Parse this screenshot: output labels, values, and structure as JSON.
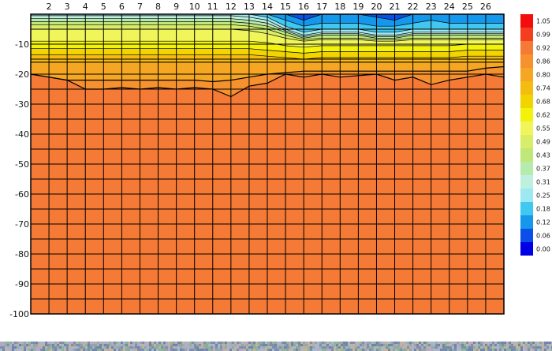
{
  "chart_data": {
    "type": "heatmap",
    "title": "",
    "xlabel": "",
    "ylabel": "",
    "x_ticks": [
      "2",
      "3",
      "4",
      "5",
      "6",
      "7",
      "8",
      "9",
      "10",
      "11",
      "12",
      "13",
      "14",
      "15",
      "16",
      "17",
      "18",
      "19",
      "20",
      "21",
      "22",
      "23",
      "24",
      "25",
      "26"
    ],
    "xlim": [
      1,
      27
    ],
    "y_ticks": [
      "-10",
      "-20",
      "-30",
      "-40",
      "-50",
      "-60",
      "-70",
      "-80",
      "-90",
      "-100"
    ],
    "ylim": [
      -100,
      0
    ],
    "grid": true,
    "colorbar": {
      "placement": "right",
      "ticks": [
        "1.05",
        "0.99",
        "0.92",
        "0.86",
        "0.80",
        "0.74",
        "0.68",
        "0.62",
        "0.55",
        "0.49",
        "0.43",
        "0.37",
        "0.31",
        "0.25",
        "0.18",
        "0.12",
        "0.06",
        "0.00"
      ],
      "colors": [
        "#f50d0d",
        "#f53d1f",
        "#f57a35",
        "#f5922e",
        "#f5a623",
        "#f5bc10",
        "#f2d400",
        "#f2f20a",
        "#f0f55a",
        "#d8ee66",
        "#bfe77a",
        "#b6ecab",
        "#bff0df",
        "#9de8f2",
        "#40c8f0",
        "#1597ec",
        "#0a50e8",
        "#0000e6"
      ]
    },
    "description_levels": {
      "x": [
        1,
        2,
        3,
        4,
        5,
        6,
        7,
        8,
        9,
        10,
        11,
        12,
        13,
        14,
        15,
        16,
        17,
        18,
        19,
        20,
        21,
        22,
        23,
        24,
        25,
        26,
        27
      ],
      "contours": [
        {
          "value": 0.06,
          "color": "#0a50e8",
          "depth": [
            0,
            0,
            0,
            0,
            0,
            0,
            0,
            0,
            0,
            0,
            0,
            0,
            0,
            0,
            0,
            2,
            0,
            0,
            0,
            1,
            2,
            0,
            0,
            0,
            0,
            0,
            0
          ]
        },
        {
          "value": 0.12,
          "color": "#1597ec",
          "depth": [
            0,
            0,
            0,
            0,
            0,
            0,
            0,
            0,
            0,
            0,
            0,
            0,
            0,
            0,
            2,
            4,
            3,
            3,
            3,
            4,
            4,
            3,
            2,
            3,
            3,
            3,
            3
          ]
        },
        {
          "value": 0.18,
          "color": "#40c8f0",
          "depth": [
            0,
            0,
            0,
            0,
            0,
            0,
            0,
            0,
            0,
            0,
            0,
            0,
            0,
            1,
            4,
            6,
            5,
            5,
            5,
            6,
            6,
            5,
            5,
            5,
            5,
            5,
            5
          ]
        },
        {
          "value": 0.25,
          "color": "#9de8f2",
          "depth": [
            0.5,
            0.5,
            0.5,
            0.5,
            0.5,
            0.5,
            0.5,
            0.5,
            0.5,
            0.5,
            0.5,
            0.5,
            1,
            2,
            5,
            7,
            6,
            6,
            6,
            7,
            7,
            6,
            6,
            6,
            6,
            6,
            6
          ]
        },
        {
          "value": 0.31,
          "color": "#bff0df",
          "depth": [
            1.5,
            1.5,
            1.5,
            1.5,
            1.5,
            1.5,
            1.5,
            1.5,
            1.5,
            1.5,
            1.5,
            1.5,
            2,
            3,
            5.5,
            7.5,
            6.5,
            6.5,
            6.5,
            7.5,
            7.5,
            6.5,
            6.5,
            6.5,
            6.5,
            6.5,
            6.5
          ]
        },
        {
          "value": 0.37,
          "color": "#b6ecab",
          "depth": [
            2.5,
            2.5,
            2.5,
            2.5,
            2.5,
            2.5,
            2.5,
            2.5,
            2.5,
            2.5,
            2.5,
            2.5,
            3,
            4,
            6,
            8,
            7,
            7,
            7,
            8,
            8,
            7,
            7,
            7,
            7,
            7,
            7
          ]
        },
        {
          "value": 0.43,
          "color": "#bfe77a",
          "depth": [
            3.5,
            3.5,
            3.5,
            3.5,
            3.5,
            3.5,
            3.5,
            3.5,
            3.5,
            3.5,
            3.5,
            3.5,
            4,
            5,
            7,
            8.5,
            8,
            8,
            8,
            8.5,
            8.5,
            8,
            8,
            8,
            8,
            8,
            8
          ]
        },
        {
          "value": 0.49,
          "color": "#d8ee66",
          "depth": [
            5,
            5,
            5,
            5,
            5,
            5,
            5,
            5,
            5,
            5,
            5,
            5,
            5.5,
            6.5,
            8,
            9,
            8.5,
            8.5,
            8.5,
            9,
            9,
            8.5,
            8.5,
            8.5,
            8.5,
            8.5,
            8.5
          ]
        },
        {
          "value": 0.55,
          "color": "#f0f55a",
          "depth": [
            9,
            9,
            9,
            9,
            9,
            9,
            9,
            9,
            9,
            9,
            9,
            9,
            9,
            9.5,
            10.5,
            11,
            10.5,
            10.5,
            10.5,
            10.5,
            10.5,
            10.5,
            10.5,
            10.5,
            10,
            10,
            10
          ]
        },
        {
          "value": 0.62,
          "color": "#f2f20a",
          "depth": [
            11.5,
            11.5,
            11.5,
            11.5,
            11.5,
            11.5,
            11.5,
            11.5,
            11.5,
            11.5,
            11.5,
            11.5,
            11.5,
            12,
            12.5,
            13,
            12.5,
            12.5,
            12.5,
            12.5,
            12.5,
            12.5,
            12.5,
            12.5,
            12,
            12,
            12
          ]
        },
        {
          "value": 0.68,
          "color": "#f2d400",
          "depth": [
            13.5,
            13.5,
            13.5,
            13.5,
            13.5,
            13.5,
            13.5,
            13.5,
            13.5,
            13.5,
            13.5,
            13.5,
            13.5,
            14,
            14.5,
            15,
            14.5,
            14.5,
            14.5,
            14.5,
            14.5,
            14.5,
            14.5,
            14.5,
            14,
            14,
            14
          ]
        },
        {
          "value": 0.74,
          "color": "#f5bc10",
          "depth": [
            16,
            16,
            16,
            16,
            16,
            16,
            16,
            16,
            16,
            16,
            16,
            16,
            16,
            16,
            16,
            16,
            16,
            16,
            16,
            16,
            16,
            16,
            16,
            16,
            16,
            16,
            16
          ]
        },
        {
          "value": 0.8,
          "color": "#f5a623",
          "depth": [
            20,
            21,
            22,
            22,
            22,
            22,
            22,
            22,
            22,
            22,
            22.5,
            22,
            21,
            20,
            19.5,
            19,
            19,
            19,
            19,
            19,
            19,
            19,
            19,
            19,
            19,
            18,
            17.5
          ]
        },
        {
          "value": 0.86,
          "color": "#f5922e",
          "depth": [
            20,
            21,
            22,
            25,
            25,
            24.5,
            25,
            24.5,
            25,
            24.5,
            25,
            27.5,
            24,
            23,
            20,
            21,
            20,
            21,
            20.5,
            20,
            22,
            21,
            23.5,
            22,
            21,
            20,
            21
          ]
        }
      ]
    }
  }
}
